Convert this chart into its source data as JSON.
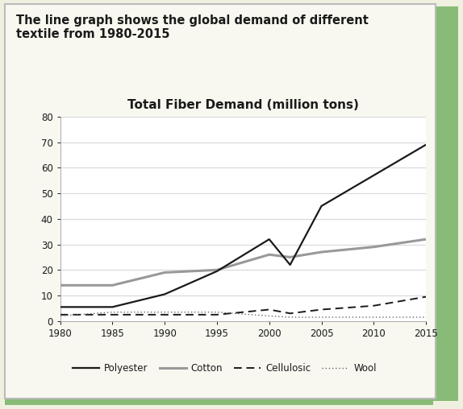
{
  "title_main": "The line graph shows the global demand of different\ntextile from 1980-2015",
  "title_chart": "Total Fiber Demand (million tons)",
  "background_outer": "#f0f0e0",
  "background_inner": "#ffffff",
  "border_color": "#88bb77",
  "years": [
    1980,
    1985,
    1990,
    1995,
    2000,
    2002,
    2005,
    2010,
    2015
  ],
  "polyester": [
    5.5,
    5.5,
    10.5,
    19.5,
    32,
    22,
    45,
    57,
    69
  ],
  "cotton": [
    14,
    14,
    19,
    20,
    26,
    25,
    27,
    29,
    32
  ],
  "cellulosic": [
    2.5,
    2.5,
    2.5,
    2.5,
    4.5,
    3,
    4.5,
    6,
    9.5
  ],
  "wool": [
    2.0,
    3.5,
    3.5,
    3.5,
    2.0,
    1.5,
    1.5,
    1.5,
    1.5
  ],
  "ylim": [
    0,
    80
  ],
  "yticks": [
    0,
    10,
    20,
    30,
    40,
    50,
    60,
    70,
    80
  ],
  "xticks": [
    1980,
    1985,
    1990,
    1995,
    2000,
    2005,
    2010,
    2015
  ],
  "line_dark": "#1a1a1a",
  "line_cotton": "#999999",
  "line_wool": "#666666",
  "grid_color": "#d8d8d8",
  "text_color": "#1a1a1a",
  "title_fontsize": 10.5,
  "chart_title_fontsize": 11,
  "tick_fontsize": 8.5,
  "legend_fontsize": 8.5
}
